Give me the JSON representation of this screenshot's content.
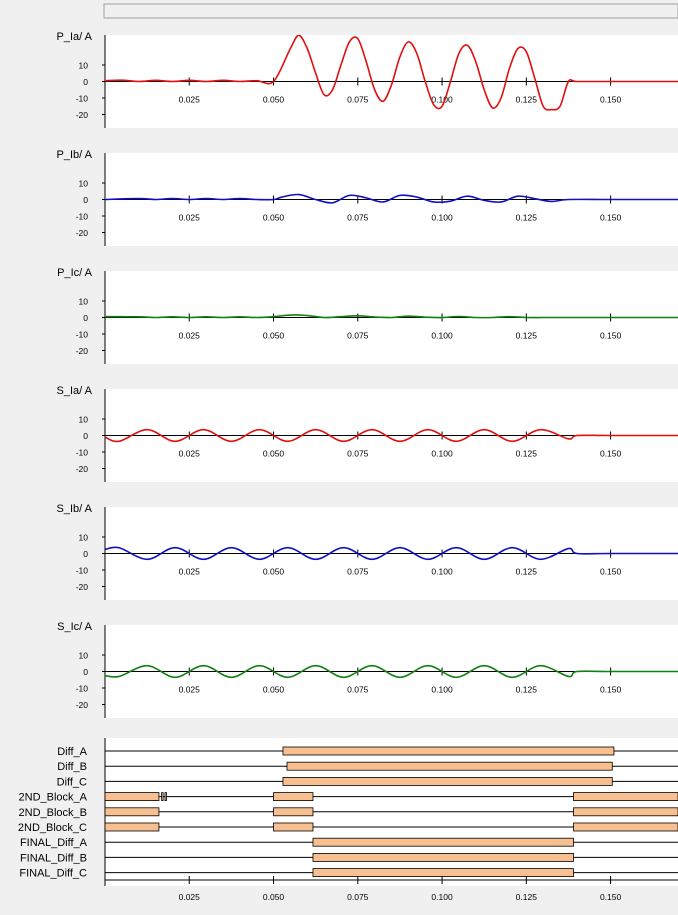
{
  "chart_data": [
    {
      "type": "line",
      "ylabel": "P_Ia/ A",
      "color": "#e01010",
      "xlim": [
        0,
        0.17
      ],
      "ylim": [
        -25,
        30
      ],
      "yticks": [
        "10",
        "0",
        "-10",
        "-20"
      ],
      "ytick_values": [
        10,
        0,
        -10,
        -20
      ],
      "xticks": [
        "0.025",
        "0.050",
        "0.075",
        "0.100",
        "0.125",
        "0.150"
      ],
      "xtick_values": [
        0.025,
        0.05,
        0.075,
        0.1,
        0.125,
        0.15
      ],
      "series": [
        {
          "x": [
            0,
            0.005,
            0.01,
            0.015,
            0.02,
            0.025,
            0.03,
            0.035,
            0.04,
            0.045,
            0.05,
            0.055,
            0.0575,
            0.06,
            0.0625,
            0.065,
            0.0675,
            0.07,
            0.0725,
            0.075,
            0.0775,
            0.08,
            0.0825,
            0.085,
            0.0875,
            0.09,
            0.0925,
            0.095,
            0.0975,
            0.1,
            0.1025,
            0.105,
            0.1075,
            0.11,
            0.1125,
            0.115,
            0.1175,
            0.12,
            0.1225,
            0.125,
            0.1275,
            0.13,
            0.1325,
            0.135,
            0.1375,
            0.14,
            0.15,
            0.17
          ],
          "y": [
            0.5,
            0.8,
            0,
            0.7,
            0,
            0.7,
            0,
            0.7,
            0,
            0.5,
            0,
            20,
            28,
            20,
            5,
            -8,
            -5,
            10,
            24,
            26,
            12,
            -5,
            -12,
            -2,
            15,
            24,
            17,
            0,
            -14,
            -15,
            0,
            17,
            22,
            12,
            -5,
            -16,
            -10,
            8,
            20,
            18,
            2,
            -15,
            -17,
            -15,
            0,
            0,
            0,
            0
          ]
        }
      ]
    },
    {
      "type": "line",
      "ylabel": "P_Ib/ A",
      "color": "#1010c0",
      "xlim": [
        0,
        0.17
      ],
      "ylim": [
        -25,
        30
      ],
      "yticks": [
        "10",
        "0",
        "-10",
        "-20"
      ],
      "ytick_values": [
        10,
        0,
        -10,
        -20
      ],
      "xticks": [
        "0.025",
        "0.050",
        "0.075",
        "0.100",
        "0.125",
        "0.150"
      ],
      "xtick_values": [
        0.025,
        0.05,
        0.075,
        0.1,
        0.125,
        0.15
      ],
      "series": [
        {
          "x": [
            0,
            0.01,
            0.015,
            0.02,
            0.025,
            0.03,
            0.035,
            0.04,
            0.045,
            0.05,
            0.0525,
            0.0575,
            0.0625,
            0.0675,
            0.0725,
            0.0775,
            0.0825,
            0.0875,
            0.0925,
            0.0975,
            0.1025,
            0.1075,
            0.1125,
            0.1175,
            0.1225,
            0.1275,
            0.1325,
            0.1375,
            0.15,
            0.17
          ],
          "y": [
            0,
            0.6,
            0,
            0.6,
            0,
            0.6,
            0,
            0.6,
            0,
            0,
            1.5,
            3,
            0,
            -2,
            2.5,
            1,
            -1.5,
            2.5,
            1.5,
            -1.5,
            -1,
            2,
            -0.5,
            -1.5,
            2,
            0.5,
            -1.2,
            0,
            0,
            0
          ]
        }
      ]
    },
    {
      "type": "line",
      "ylabel": "P_Ic/ A",
      "color": "#108010",
      "xlim": [
        0,
        0.17
      ],
      "ylim": [
        -25,
        30
      ],
      "yticks": [
        "10",
        "0",
        "-10",
        "-20"
      ],
      "ytick_values": [
        10,
        0,
        -10,
        -20
      ],
      "xticks": [
        "0.025",
        "0.050",
        "0.075",
        "0.100",
        "0.125",
        "0.150"
      ],
      "xtick_values": [
        0.025,
        0.05,
        0.075,
        0.1,
        0.125,
        0.15
      ],
      "series": [
        {
          "x": [
            0,
            0.01,
            0.015,
            0.02,
            0.025,
            0.03,
            0.035,
            0.04,
            0.045,
            0.05,
            0.055,
            0.06,
            0.065,
            0.07,
            0.075,
            0.08,
            0.085,
            0.09,
            0.095,
            0.1,
            0.105,
            0.11,
            0.115,
            0.12,
            0.125,
            0.13,
            0.135,
            0.14,
            0.17
          ],
          "y": [
            0.5,
            0.4,
            0,
            0.4,
            0,
            0.4,
            0,
            0.4,
            0,
            0.5,
            1.5,
            1.2,
            0,
            0.5,
            1,
            0.3,
            0,
            0.8,
            0.2,
            0,
            0.6,
            0,
            0,
            0.5,
            0,
            0,
            0,
            0,
            0
          ]
        }
      ]
    },
    {
      "type": "line",
      "ylabel": "S_Ia/ A",
      "color": "#e01010",
      "xlim": [
        0,
        0.17
      ],
      "ylim": [
        -25,
        30
      ],
      "yticks": [
        "10",
        "0",
        "-10",
        "-20"
      ],
      "ytick_values": [
        10,
        0,
        -10,
        -20
      ],
      "xticks": [
        "0.025",
        "0.050",
        "0.075",
        "0.100",
        "0.125",
        "0.150"
      ],
      "xtick_values": [
        0.025,
        0.05,
        0.075,
        0.1,
        0.125,
        0.15
      ],
      "series": [
        {
          "x": [
            0,
            0.0042,
            0.0125,
            0.0208,
            0.0292,
            0.0375,
            0.0458,
            0.0542,
            0.0625,
            0.0708,
            0.0792,
            0.0875,
            0.0958,
            0.1042,
            0.1125,
            0.1208,
            0.1292,
            0.1375,
            0.14,
            0.15,
            0.17
          ],
          "y": [
            -1,
            -3.5,
            3.5,
            -3.5,
            3.5,
            -3.5,
            3.5,
            -3.5,
            3.5,
            -3.5,
            3.5,
            -3.5,
            3.5,
            -3.5,
            3.5,
            -3.5,
            3.5,
            -2,
            0,
            0,
            0
          ]
        }
      ]
    },
    {
      "type": "line",
      "ylabel": "S_Ib/ A",
      "color": "#1010c0",
      "xlim": [
        0,
        0.17
      ],
      "ylim": [
        -25,
        30
      ],
      "yticks": [
        "10",
        "0",
        "-10",
        "-20"
      ],
      "ytick_values": [
        10,
        0,
        -10,
        -20
      ],
      "xticks": [
        "0.025",
        "0.050",
        "0.075",
        "0.100",
        "0.125",
        "0.150"
      ],
      "xtick_values": [
        0.025,
        0.05,
        0.075,
        0.1,
        0.125,
        0.15
      ],
      "series": [
        {
          "x": [
            0,
            0.0042,
            0.0125,
            0.0208,
            0.0292,
            0.0375,
            0.0458,
            0.0542,
            0.0625,
            0.0708,
            0.0792,
            0.0875,
            0.0958,
            0.1042,
            0.1125,
            0.1208,
            0.1292,
            0.1375,
            0.14,
            0.15,
            0.17
          ],
          "y": [
            2.5,
            3.5,
            -3.5,
            3.5,
            -3.5,
            3.5,
            -3.5,
            3.5,
            -3.5,
            3.5,
            -3.5,
            3.5,
            -3.5,
            3.5,
            -3.5,
            3.5,
            -3.5,
            3,
            0,
            0,
            0
          ]
        }
      ]
    },
    {
      "type": "line",
      "ylabel": "S_Ic/ A",
      "color": "#108010",
      "xlim": [
        0,
        0.17
      ],
      "ylim": [
        -25,
        30
      ],
      "yticks": [
        "10",
        "0",
        "-10",
        "-20"
      ],
      "ytick_values": [
        10,
        0,
        -10,
        -20
      ],
      "xticks": [
        "0.025",
        "0.050",
        "0.075",
        "0.100",
        "0.125",
        "0.150"
      ],
      "xtick_values": [
        0.025,
        0.05,
        0.075,
        0.1,
        0.125,
        0.15
      ],
      "series": [
        {
          "x": [
            0,
            0.0042,
            0.0125,
            0.0208,
            0.0292,
            0.0375,
            0.0458,
            0.0542,
            0.0625,
            0.0708,
            0.0792,
            0.0875,
            0.0958,
            0.1042,
            0.1125,
            0.1208,
            0.1292,
            0.1375,
            0.14,
            0.15,
            0.17
          ],
          "y": [
            -2.5,
            -3,
            3.5,
            -3.5,
            3.5,
            -3.5,
            3.5,
            -3.5,
            3.5,
            -3.5,
            3.5,
            -3.5,
            3.5,
            -3.5,
            3.5,
            -3.5,
            3.5,
            -3,
            0,
            0,
            0
          ]
        }
      ]
    },
    {
      "type": "bar",
      "subtype": "digital-timeline",
      "xlim": [
        0,
        0.17
      ],
      "xticks": [
        "0.025",
        "0.050",
        "0.075",
        "0.100",
        "0.125",
        "0.150"
      ],
      "xtick_values": [
        0.025,
        0.05,
        0.075,
        0.1,
        0.125,
        0.15
      ],
      "bar_color": "#f8c090",
      "channels": [
        {
          "name": "Diff_A",
          "intervals": [
            [
              0.0528,
              0.151
            ]
          ]
        },
        {
          "name": "Diff_B",
          "intervals": [
            [
              0.054,
              0.1505
            ]
          ]
        },
        {
          "name": "Diff_C",
          "intervals": [
            [
              0.0528,
              0.1505
            ]
          ]
        },
        {
          "name": "2ND_Block_A",
          "intervals": [
            [
              0,
              0.016
            ],
            [
              0.0168,
              0.0172
            ],
            [
              0.0178,
              0.0182
            ],
            [
              0.05,
              0.0617
            ],
            [
              0.139,
              0.17
            ]
          ]
        },
        {
          "name": "2ND_Block_B",
          "intervals": [
            [
              0,
              0.016
            ],
            [
              0.05,
              0.0617
            ],
            [
              0.139,
              0.17
            ]
          ]
        },
        {
          "name": "2ND_Block_C",
          "intervals": [
            [
              0,
              0.016
            ],
            [
              0.05,
              0.0617
            ],
            [
              0.139,
              0.17
            ]
          ]
        },
        {
          "name": "FINAL_Diff_A",
          "intervals": [
            [
              0.0617,
              0.139
            ]
          ]
        },
        {
          "name": "FINAL_Diff_B",
          "intervals": [
            [
              0.0617,
              0.139
            ]
          ]
        },
        {
          "name": "FINAL_Diff_C",
          "intervals": [
            [
              0.0617,
              0.139
            ]
          ]
        }
      ]
    }
  ]
}
